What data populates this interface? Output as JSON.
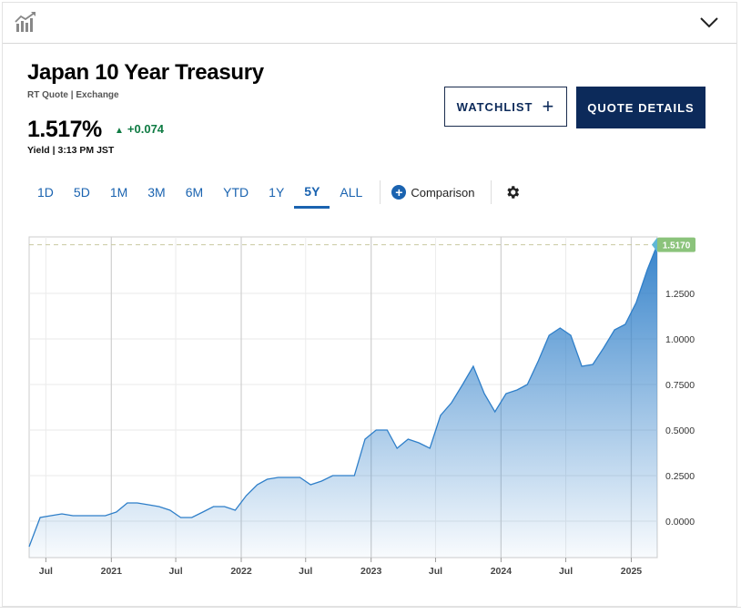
{
  "header": {
    "title": "Japan 10 Year Treasury",
    "source": "RT Quote | Exchange",
    "price": "1.517%",
    "change": "+0.074",
    "change_color": "#0f7b43",
    "yield_time": "Yield | 3:13 PM JST"
  },
  "buttons": {
    "watchlist": "WATCHLIST",
    "quote_details": "QUOTE DETAILS"
  },
  "ranges": [
    {
      "label": "1D"
    },
    {
      "label": "5D"
    },
    {
      "label": "1M"
    },
    {
      "label": "3M"
    },
    {
      "label": "6M"
    },
    {
      "label": "YTD"
    },
    {
      "label": "1Y"
    },
    {
      "label": "5Y"
    },
    {
      "label": "ALL"
    }
  ],
  "active_range": "5Y",
  "comparison_label": "Comparison",
  "icons": {
    "chart_toggle": "chart-toggle-icon",
    "collapse": "chevron-down-icon",
    "comparison": "plus-circle-icon",
    "settings": "gear-icon"
  },
  "colors": {
    "accent": "#1a63b0",
    "navy": "#0c2a5a",
    "line": "#2f7fc9",
    "last_value_badge": "#8bc37b"
  },
  "chart_data": {
    "type": "area",
    "x": [
      "2020-05",
      "2020-06",
      "2020-07",
      "2020-08",
      "2020-09",
      "2020-10",
      "2020-11",
      "2020-12",
      "2021-01",
      "2021-02",
      "2021-03",
      "2021-04",
      "2021-05",
      "2021-06",
      "2021-07",
      "2021-08",
      "2021-09",
      "2021-10",
      "2021-11",
      "2021-12",
      "2022-01",
      "2022-02",
      "2022-03",
      "2022-04",
      "2022-05",
      "2022-06",
      "2022-07",
      "2022-08",
      "2022-09",
      "2022-10",
      "2022-11",
      "2022-12",
      "2023-01",
      "2023-02",
      "2023-03",
      "2023-04",
      "2023-05",
      "2023-06",
      "2023-07",
      "2023-08",
      "2023-09",
      "2023-10",
      "2023-11",
      "2023-12",
      "2024-01",
      "2024-02",
      "2024-03",
      "2024-04",
      "2024-05",
      "2024-06",
      "2024-07",
      "2024-08",
      "2024-09",
      "2024-10",
      "2024-11",
      "2024-12",
      "2025-01",
      "2025-02",
      "2025-03"
    ],
    "values": [
      -0.14,
      0.02,
      0.03,
      0.04,
      0.03,
      0.03,
      0.03,
      0.03,
      0.05,
      0.1,
      0.1,
      0.09,
      0.08,
      0.06,
      0.02,
      0.02,
      0.05,
      0.08,
      0.08,
      0.06,
      0.14,
      0.2,
      0.23,
      0.24,
      0.24,
      0.24,
      0.2,
      0.22,
      0.25,
      0.25,
      0.25,
      0.45,
      0.5,
      0.5,
      0.4,
      0.45,
      0.43,
      0.4,
      0.58,
      0.65,
      0.75,
      0.85,
      0.7,
      0.6,
      0.7,
      0.72,
      0.75,
      0.88,
      1.02,
      1.06,
      1.02,
      0.85,
      0.86,
      0.95,
      1.05,
      1.08,
      1.2,
      1.38,
      1.517
    ],
    "last_value": "1.5170",
    "x_ticks": [
      "Jul",
      "2021",
      "Jul",
      "2022",
      "Jul",
      "2023",
      "Jul",
      "2024",
      "Jul",
      "2025"
    ],
    "y_ticks": [
      "0.0000",
      "0.2500",
      "0.5000",
      "0.7500",
      "1.0000",
      "1.2500"
    ],
    "ylim": [
      -0.2,
      1.56
    ],
    "grid": true,
    "reference_line": 1.517
  }
}
